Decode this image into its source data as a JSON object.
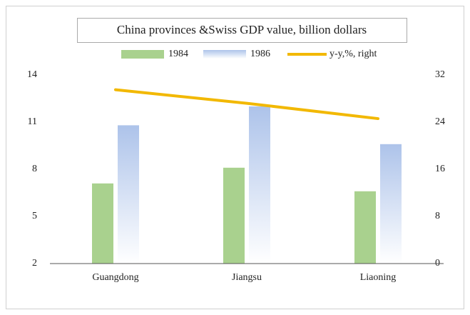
{
  "chart_data": {
    "type": "bar_line",
    "title": "China provinces &Swiss  GDP value, billion dollars",
    "categories": [
      "Guangdong",
      "Jiangsu",
      "Liaoning"
    ],
    "series": [
      {
        "name": "1984",
        "type": "bar",
        "color": "#a9d18e",
        "values": [
          7.1,
          8.1,
          6.6
        ]
      },
      {
        "name": "1986",
        "type": "bar",
        "color": "#adc3ea",
        "gradient": true,
        "values": [
          10.8,
          12.0,
          9.6
        ]
      },
      {
        "name": "y-y,%, right",
        "type": "line",
        "axis": "y2",
        "color": "#f2b800",
        "values": [
          29.5,
          27.2,
          24.6
        ]
      }
    ],
    "ylim": [
      2,
      14
    ],
    "yticks": [
      2,
      5,
      8,
      11,
      14
    ],
    "y2lim": [
      0,
      32
    ],
    "y2ticks": [
      0,
      8,
      16,
      24,
      32
    ],
    "grid": false,
    "legend": "top"
  }
}
